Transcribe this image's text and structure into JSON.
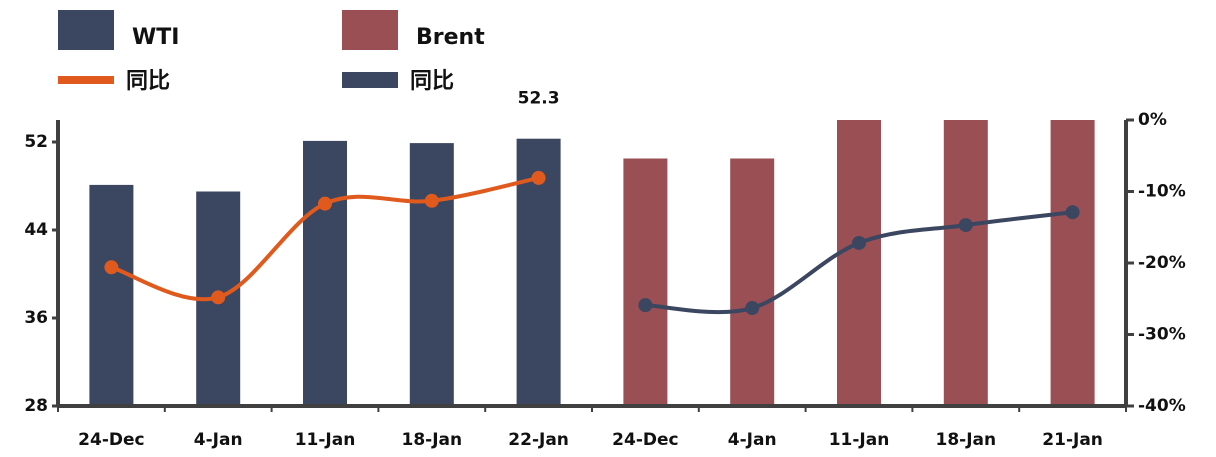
{
  "chart_data": {
    "type": "bar",
    "categories": [
      "24-Dec",
      "4-Jan",
      "11-Jan",
      "18-Jan",
      "22-Jan",
      "24-Dec",
      "4-Jan",
      "11-Jan",
      "18-Jan",
      "21-Jan"
    ],
    "series": [
      {
        "name": "WTI",
        "color": "#3b4660",
        "type": "bar",
        "values": [
          48.1,
          47.5,
          52.1,
          51.9,
          52.3,
          null,
          null,
          null,
          null,
          null
        ],
        "value_labels": [
          null,
          null,
          null,
          null,
          "52.3",
          null,
          null,
          null,
          null,
          null
        ]
      },
      {
        "name": "Brent",
        "color": "#9a4f55",
        "type": "bar",
        "values": [
          null,
          null,
          null,
          null,
          null,
          50.5,
          50.5,
          54,
          54,
          54
        ]
      },
      {
        "name": "同比",
        "color": "#e05a1e",
        "type": "line",
        "axis": "y2",
        "values": [
          -20.6,
          -24.8,
          -11.7,
          -11.3,
          -8.1,
          null,
          null,
          null,
          null,
          null
        ]
      },
      {
        "name": "同比",
        "color": "#3b4660",
        "type": "line",
        "axis": "y2",
        "values": [
          null,
          null,
          null,
          null,
          null,
          -25.9,
          -26.3,
          -17.2,
          -14.7,
          -12.9
        ]
      }
    ],
    "ylim": [
      28,
      54
    ],
    "yticks": [
      28,
      36,
      44,
      52
    ],
    "y2lim": [
      -40,
      0
    ],
    "y2ticks": [
      {
        "value": -40,
        "label": "-40%"
      },
      {
        "value": -30,
        "label": "-30%"
      },
      {
        "value": -20,
        "label": "-20%"
      },
      {
        "value": -10,
        "label": "-10%"
      },
      {
        "value": 0,
        "label": "0%"
      }
    ]
  }
}
